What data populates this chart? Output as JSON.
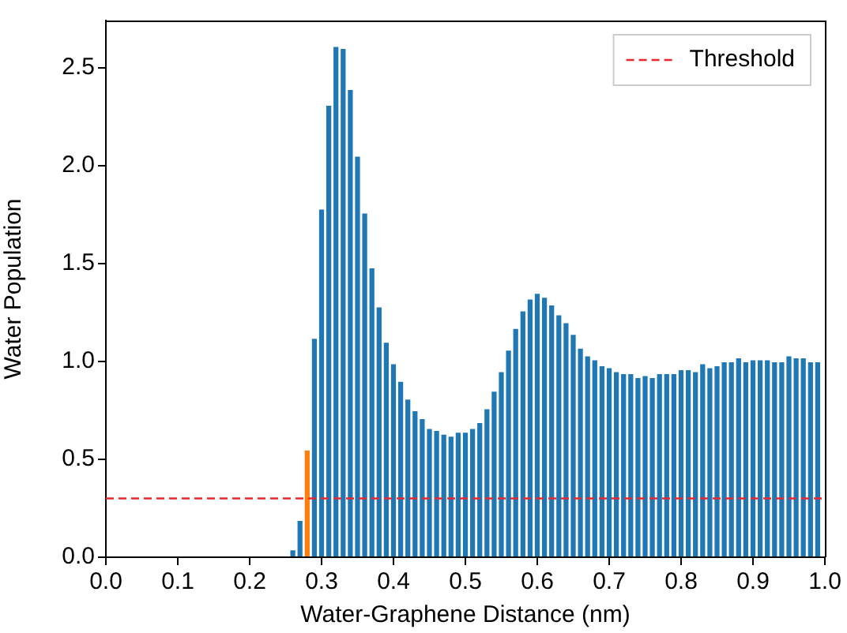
{
  "chart_data": {
    "type": "bar",
    "xlabel": "Water-Graphene Distance (nm)",
    "ylabel": "Water Population",
    "x": [
      0.26,
      0.27,
      0.28,
      0.29,
      0.3,
      0.31,
      0.32,
      0.33,
      0.34,
      0.35,
      0.36,
      0.37,
      0.38,
      0.39,
      0.4,
      0.41,
      0.42,
      0.43,
      0.44,
      0.45,
      0.46,
      0.47,
      0.48,
      0.49,
      0.5,
      0.51,
      0.52,
      0.53,
      0.54,
      0.55,
      0.56,
      0.57,
      0.58,
      0.59,
      0.6,
      0.61,
      0.62,
      0.63,
      0.64,
      0.65,
      0.66,
      0.67,
      0.68,
      0.69,
      0.7,
      0.71,
      0.72,
      0.73,
      0.74,
      0.75,
      0.76,
      0.77,
      0.78,
      0.79,
      0.8,
      0.81,
      0.82,
      0.83,
      0.84,
      0.85,
      0.86,
      0.87,
      0.88,
      0.89,
      0.9,
      0.91,
      0.92,
      0.93,
      0.94,
      0.95,
      0.96,
      0.97,
      0.98,
      0.99
    ],
    "values": [
      0.04,
      0.19,
      0.55,
      1.12,
      1.78,
      2.31,
      2.61,
      2.6,
      2.39,
      2.05,
      1.76,
      1.48,
      1.28,
      1.1,
      0.99,
      0.9,
      0.81,
      0.75,
      0.71,
      0.66,
      0.65,
      0.63,
      0.62,
      0.64,
      0.64,
      0.66,
      0.69,
      0.76,
      0.85,
      0.95,
      1.06,
      1.17,
      1.26,
      1.32,
      1.35,
      1.33,
      1.29,
      1.24,
      1.2,
      1.14,
      1.07,
      1.03,
      1.01,
      0.98,
      0.97,
      0.95,
      0.94,
      0.94,
      0.92,
      0.93,
      0.92,
      0.94,
      0.94,
      0.94,
      0.96,
      0.96,
      0.95,
      0.99,
      0.97,
      0.98,
      1.0,
      1.0,
      1.02,
      1.0,
      1.01,
      1.01,
      1.01,
      1.0,
      1.0,
      1.03,
      1.02,
      1.02,
      1.0,
      1.0
    ],
    "colors": [
      "#1f77b4",
      "#1f77b4",
      "#ff7f0e",
      "#1f77b4",
      "#1f77b4",
      "#1f77b4",
      "#1f77b4",
      "#1f77b4",
      "#1f77b4",
      "#1f77b4",
      "#1f77b4",
      "#1f77b4",
      "#1f77b4",
      "#1f77b4",
      "#1f77b4",
      "#1f77b4",
      "#1f77b4",
      "#1f77b4",
      "#1f77b4",
      "#1f77b4",
      "#1f77b4",
      "#1f77b4",
      "#1f77b4",
      "#1f77b4",
      "#1f77b4",
      "#1f77b4",
      "#1f77b4",
      "#1f77b4",
      "#1f77b4",
      "#1f77b4",
      "#1f77b4",
      "#1f77b4",
      "#1f77b4",
      "#1f77b4",
      "#1f77b4",
      "#1f77b4",
      "#1f77b4",
      "#1f77b4",
      "#1f77b4",
      "#1f77b4",
      "#1f77b4",
      "#1f77b4",
      "#1f77b4",
      "#1f77b4",
      "#1f77b4",
      "#1f77b4",
      "#1f77b4",
      "#1f77b4",
      "#1f77b4",
      "#1f77b4",
      "#1f77b4",
      "#1f77b4",
      "#1f77b4",
      "#1f77b4",
      "#1f77b4",
      "#1f77b4",
      "#1f77b4",
      "#1f77b4",
      "#1f77b4",
      "#1f77b4",
      "#1f77b4",
      "#1f77b4",
      "#1f77b4",
      "#1f77b4",
      "#1f77b4",
      "#1f77b4",
      "#1f77b4",
      "#1f77b4",
      "#1f77b4",
      "#1f77b4",
      "#1f77b4",
      "#1f77b4",
      "#1f77b4",
      "#1f77b4"
    ],
    "xlim": [
      0.0,
      1.0
    ],
    "xticks": [
      {
        "value": 0,
        "label": "0.0"
      },
      0.1,
      0.2,
      0.3,
      0.4,
      0.5,
      0.6,
      0.7,
      0.8,
      0.9,
      {
        "value": 1,
        "label": "1.0"
      }
    ],
    "ylim": [
      0,
      2.74
    ],
    "yticks": [
      {
        "value": 0,
        "label": "0.0"
      },
      0.5,
      {
        "value": 1,
        "label": "1.0"
      },
      1.5,
      {
        "value": 2,
        "label": "2.0"
      },
      2.5
    ],
    "ref_lines": [
      {
        "axis": "y",
        "value": 0.3,
        "label": "Threshold",
        "color": "#e8282b",
        "line_style": "dashed"
      }
    ],
    "grid": false,
    "legend": "top right"
  }
}
